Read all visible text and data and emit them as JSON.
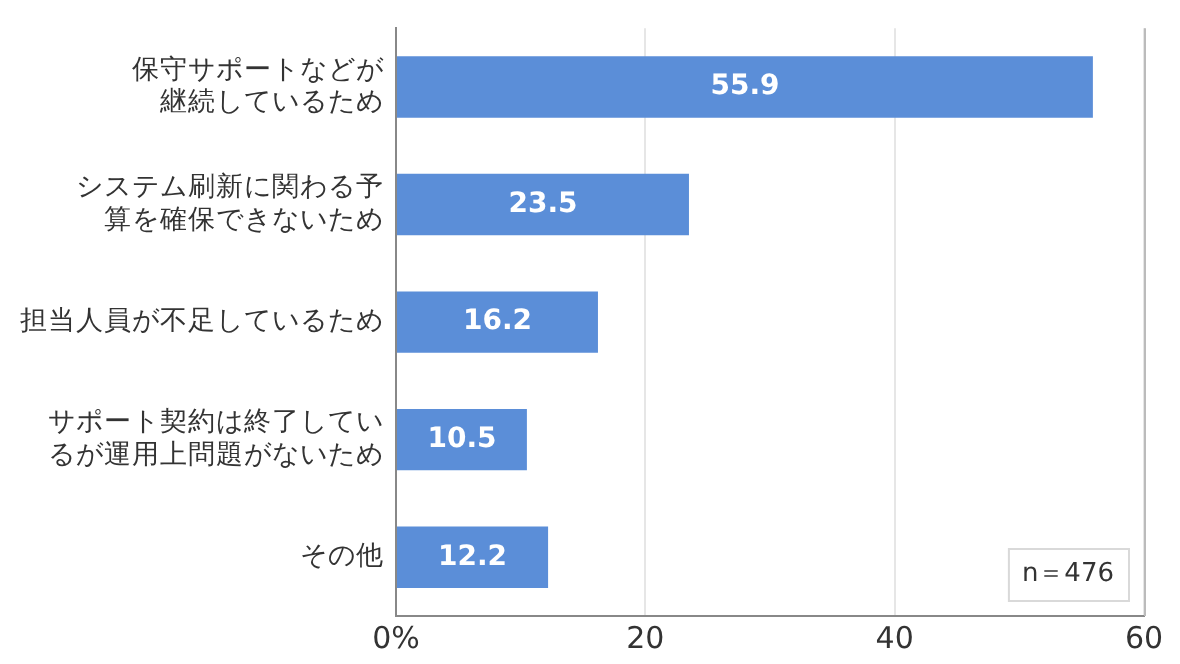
{
  "chart_data": {
    "type": "bar",
    "orientation": "horizontal",
    "categories": [
      "保守サポートなどが継続しているため",
      "システム刷新に関わる予算を確保できないため",
      "担当人員が不足しているため",
      "サポート契約は終了しているが運用上問題がないため",
      "その他"
    ],
    "values": [
      55.9,
      23.5,
      16.2,
      10.5,
      12.2
    ],
    "color": "#5b8ed8",
    "xlim": [
      0,
      60
    ],
    "xticks": [
      {
        "value": 0,
        "label": "0%"
      },
      20,
      40,
      60
    ],
    "grid": "x",
    "data_labels": true,
    "annotations": [
      "n＝476"
    ]
  }
}
